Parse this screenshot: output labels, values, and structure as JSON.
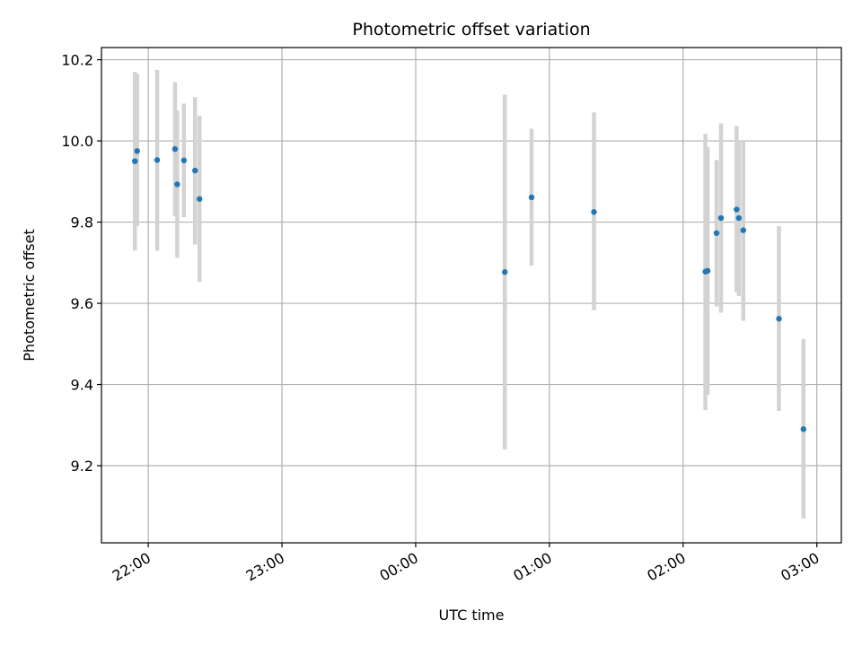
{
  "chart_data": {
    "type": "scatter",
    "title": "Photometric offset variation",
    "xlabel": "UTC time",
    "ylabel": "Photometric offset",
    "x_tick_labels": [
      "22:00",
      "23:00",
      "00:00",
      "01:00",
      "02:00",
      "03:00"
    ],
    "x_tick_times": [
      "21:59",
      "22:59",
      "23:59",
      "00:59",
      "01:59",
      "02:59"
    ],
    "y_ticks": [
      9.2,
      9.4,
      9.6,
      9.8,
      10.0,
      10.2
    ],
    "xlim": [
      "21:38",
      "03:10"
    ],
    "ylim": [
      9.01,
      10.23
    ],
    "grid": true,
    "colors": {
      "point": "#1f77b4",
      "errorbar": "#d3d3d3",
      "grid": "#b0b0b0"
    },
    "points": [
      {
        "t": "21:53",
        "y": 9.95,
        "low": 9.73,
        "high": 10.17
      },
      {
        "t": "21:54",
        "y": 9.975,
        "low": 9.79,
        "high": 10.165
      },
      {
        "t": "22:03",
        "y": 9.953,
        "low": 9.73,
        "high": 10.175
      },
      {
        "t": "22:11",
        "y": 9.98,
        "low": 9.815,
        "high": 10.145
      },
      {
        "t": "22:12",
        "y": 9.893,
        "low": 9.712,
        "high": 10.075
      },
      {
        "t": "22:15",
        "y": 9.952,
        "low": 9.812,
        "high": 10.092
      },
      {
        "t": "22:20",
        "y": 9.927,
        "low": 9.745,
        "high": 10.108
      },
      {
        "t": "22:22",
        "y": 9.857,
        "low": 9.653,
        "high": 10.062
      },
      {
        "t": "00:39",
        "y": 9.677,
        "low": 9.24,
        "high": 10.114
      },
      {
        "t": "00:51",
        "y": 9.861,
        "low": 9.693,
        "high": 10.03
      },
      {
        "t": "01:19",
        "y": 9.825,
        "low": 9.583,
        "high": 10.07
      },
      {
        "t": "02:09",
        "y": 9.678,
        "low": 9.337,
        "high": 10.018
      },
      {
        "t": "02:10",
        "y": 9.68,
        "low": 9.375,
        "high": 9.985
      },
      {
        "t": "02:14",
        "y": 9.773,
        "low": 9.592,
        "high": 9.953
      },
      {
        "t": "02:16",
        "y": 9.81,
        "low": 9.577,
        "high": 10.043
      },
      {
        "t": "02:23",
        "y": 9.831,
        "low": 9.627,
        "high": 10.037
      },
      {
        "t": "02:24",
        "y": 9.81,
        "low": 9.618,
        "high": 10.002
      },
      {
        "t": "02:26",
        "y": 9.78,
        "low": 9.557,
        "high": 10.0
      },
      {
        "t": "02:42",
        "y": 9.562,
        "low": 9.335,
        "high": 9.79
      },
      {
        "t": "02:53",
        "y": 9.29,
        "low": 9.07,
        "high": 9.512
      }
    ]
  }
}
